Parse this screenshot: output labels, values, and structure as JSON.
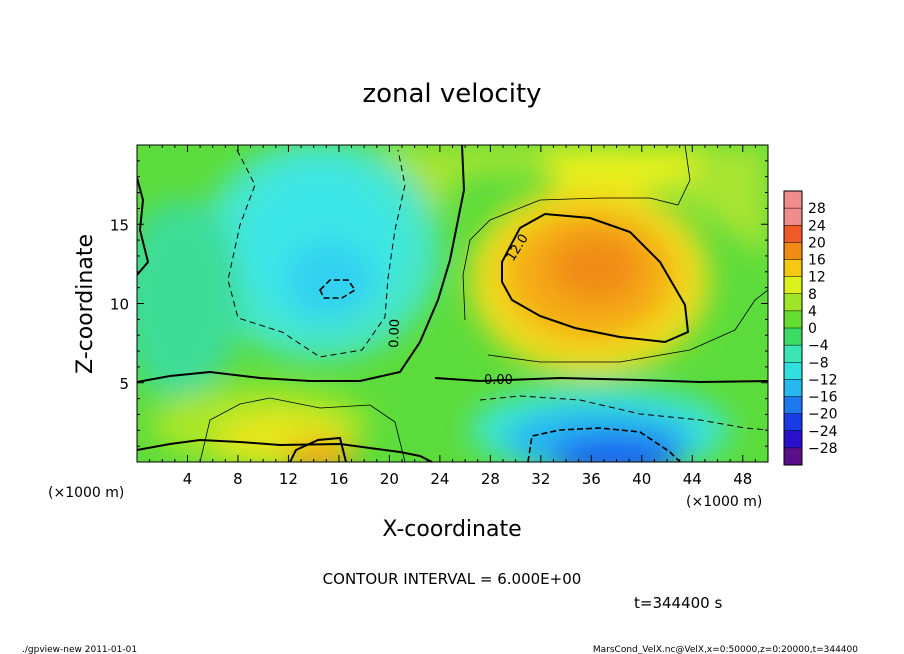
{
  "chart_data": {
    "type": "heatmap",
    "title": "zonal velocity",
    "xlabel": "X-coordinate",
    "ylabel": "Z-coordinate",
    "x_unit_label": "(×1000 m)",
    "xlim": [
      0,
      50
    ],
    "ylim": [
      0,
      20
    ],
    "x_ticks": [
      4,
      8,
      12,
      16,
      20,
      24,
      28,
      32,
      36,
      40,
      44,
      48
    ],
    "y_ticks": [
      5,
      10,
      15
    ],
    "colorbar": {
      "levels": [
        -28,
        -24,
        -20,
        -16,
        -12,
        -8,
        -4,
        0,
        4,
        8,
        12,
        16,
        20,
        24,
        28
      ],
      "labels": [
        "28",
        "24",
        "20",
        "16",
        "12",
        "8",
        "4",
        "0",
        "−4",
        "−8",
        "−12",
        "−16",
        "−20",
        "−24",
        "−28"
      ],
      "colors": [
        "#5a0f8a",
        "#2a10c8",
        "#1a3ae6",
        "#1e78f0",
        "#28b8f0",
        "#32e0e0",
        "#3ce6b4",
        "#3cdc64",
        "#64dc32",
        "#a0e628",
        "#dcf01e",
        "#f5c814",
        "#f08c14",
        "#f05a28",
        "#f08c8c"
      ]
    },
    "contour_labels": [
      "12.0",
      "0.00",
      "0.00"
    ],
    "contour_interval_text": "CONTOUR INTERVAL = 6.000E+00",
    "time_text": "t=344400 s",
    "features": [
      {
        "name": "positive jet core",
        "x": 35,
        "z": 12.5,
        "value": 16
      },
      {
        "name": "negative region upper left",
        "x": 15,
        "z": 11,
        "value": -8
      },
      {
        "name": "negative region surface",
        "x": 38,
        "z": 1,
        "value": -20
      },
      {
        "name": "positive region surface left",
        "x": 14,
        "z": 1,
        "value": 12
      }
    ]
  },
  "footer": {
    "left": "./gpview-new   2011-01-01",
    "right": "MarsCond_VelX.nc@VelX,x=0:50000,z=0:20000,t=344400"
  }
}
